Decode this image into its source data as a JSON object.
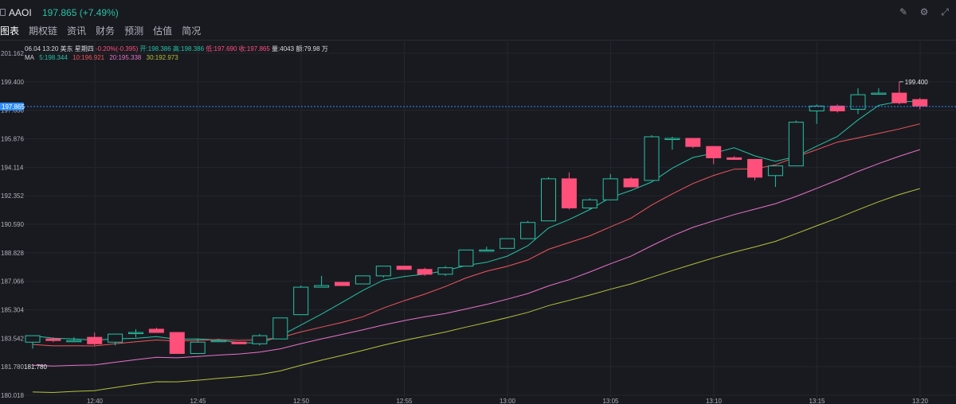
{
  "header": {
    "ticker": "AAOI",
    "price_change": "197.865 (+7.49%)",
    "icons": [
      "edit-icon",
      "settings-icon",
      "expand-icon"
    ]
  },
  "tabs": [
    "图表",
    "期权链",
    "资讯",
    "财务",
    "预测",
    "估值",
    "简况"
  ],
  "info": {
    "datetime": "06.04 13:20 美东 星期四",
    "change": "-0.20%(-0.395)",
    "open": "开:198.386",
    "high": "高:198.386",
    "low": "低:197.690",
    "close": "收:197.865",
    "volume": "量:4043",
    "amount": "额:79.98 万"
  },
  "ma": {
    "label": "MA",
    "ma5": "5:198.344",
    "ma10": "10:196.921",
    "ma20": "20:195.338",
    "ma30": "30:192.973"
  },
  "colors": {
    "up": "#26c2a4",
    "down": "#ff4f7a",
    "ma5": "#26c2a4",
    "ma10": "#f0565a",
    "ma20": "#e873c8",
    "ma30": "#b5c23a",
    "price_tag": "#2f8cff"
  },
  "chart_data": {
    "type": "candlestick",
    "y_ticks": [
      "201.162",
      "199.400",
      "197.638",
      "195.876",
      "194.114",
      "192.352",
      "190.590",
      "188.828",
      "187.066",
      "185.304",
      "183.542",
      "181.780",
      "180.018"
    ],
    "ylim": [
      180.018,
      201.162
    ],
    "x_ticks": [
      "12:40",
      "12:45",
      "12:50",
      "12:55",
      "13:00",
      "13:05",
      "13:10",
      "13:15",
      "13:20"
    ],
    "current_price_label": "197.865",
    "high_annotation": "199.400",
    "low_annotation": "181.780",
    "candles": [
      {
        "o": 183.3,
        "h": 183.7,
        "l": 182.9,
        "c": 183.7
      },
      {
        "o": 183.5,
        "h": 183.6,
        "l": 183.3,
        "c": 183.4
      },
      {
        "o": 183.4,
        "h": 183.6,
        "l": 183.3,
        "c": 183.4
      },
      {
        "o": 183.6,
        "h": 183.9,
        "l": 183.1,
        "c": 183.2
      },
      {
        "o": 183.3,
        "h": 183.8,
        "l": 183.1,
        "c": 183.8
      },
      {
        "o": 183.9,
        "h": 184.1,
        "l": 183.6,
        "c": 183.9
      },
      {
        "o": 184.1,
        "h": 184.2,
        "l": 183.9,
        "c": 183.9
      },
      {
        "o": 183.9,
        "h": 183.9,
        "l": 182.6,
        "c": 182.6
      },
      {
        "o": 182.6,
        "h": 183.5,
        "l": 182.6,
        "c": 183.3
      },
      {
        "o": 183.4,
        "h": 183.5,
        "l": 183.3,
        "c": 183.4
      },
      {
        "o": 183.3,
        "h": 183.3,
        "l": 183.2,
        "c": 183.2
      },
      {
        "o": 183.2,
        "h": 183.8,
        "l": 183.1,
        "c": 183.7
      },
      {
        "o": 183.5,
        "h": 184.8,
        "l": 183.5,
        "c": 184.8
      },
      {
        "o": 185.0,
        "h": 186.8,
        "l": 185.0,
        "c": 186.7
      },
      {
        "o": 186.7,
        "h": 187.4,
        "l": 186.7,
        "c": 186.8
      },
      {
        "o": 187.0,
        "h": 187.0,
        "l": 186.8,
        "c": 186.8
      },
      {
        "o": 186.9,
        "h": 187.4,
        "l": 186.9,
        "c": 187.4
      },
      {
        "o": 187.4,
        "h": 188.0,
        "l": 187.3,
        "c": 188.0
      },
      {
        "o": 188.0,
        "h": 188.0,
        "l": 187.8,
        "c": 187.8
      },
      {
        "o": 187.8,
        "h": 187.9,
        "l": 187.4,
        "c": 187.5
      },
      {
        "o": 187.5,
        "h": 188.0,
        "l": 187.4,
        "c": 187.9
      },
      {
        "o": 188.0,
        "h": 189.0,
        "l": 188.0,
        "c": 189.0
      },
      {
        "o": 189.0,
        "h": 189.2,
        "l": 188.9,
        "c": 189.0
      },
      {
        "o": 189.1,
        "h": 189.7,
        "l": 189.1,
        "c": 189.7
      },
      {
        "o": 189.7,
        "h": 190.8,
        "l": 189.7,
        "c": 190.7
      },
      {
        "o": 190.8,
        "h": 193.5,
        "l": 190.8,
        "c": 193.4
      },
      {
        "o": 193.4,
        "h": 193.8,
        "l": 191.5,
        "c": 191.6
      },
      {
        "o": 191.6,
        "h": 192.2,
        "l": 191.5,
        "c": 192.1
      },
      {
        "o": 192.1,
        "h": 193.7,
        "l": 192.1,
        "c": 193.4
      },
      {
        "o": 193.4,
        "h": 193.5,
        "l": 192.9,
        "c": 192.9
      },
      {
        "o": 193.3,
        "h": 196.1,
        "l": 193.3,
        "c": 196.0
      },
      {
        "o": 195.9,
        "h": 196.0,
        "l": 195.2,
        "c": 195.9
      },
      {
        "o": 195.9,
        "h": 195.9,
        "l": 195.3,
        "c": 195.4
      },
      {
        "o": 195.4,
        "h": 195.4,
        "l": 194.3,
        "c": 194.7
      },
      {
        "o": 194.7,
        "h": 194.8,
        "l": 194.6,
        "c": 194.6
      },
      {
        "o": 194.6,
        "h": 194.6,
        "l": 193.3,
        "c": 193.5
      },
      {
        "o": 193.6,
        "h": 194.2,
        "l": 192.9,
        "c": 194.2
      },
      {
        "o": 194.2,
        "h": 197.0,
        "l": 194.2,
        "c": 196.9
      },
      {
        "o": 197.6,
        "h": 198.0,
        "l": 196.8,
        "c": 197.9
      },
      {
        "o": 197.9,
        "h": 198.0,
        "l": 197.5,
        "c": 197.6
      },
      {
        "o": 197.7,
        "h": 199.0,
        "l": 197.4,
        "c": 198.6
      },
      {
        "o": 198.7,
        "h": 199.0,
        "l": 198.6,
        "c": 198.7
      },
      {
        "o": 198.7,
        "h": 199.4,
        "l": 198.0,
        "c": 198.1
      },
      {
        "o": 198.3,
        "h": 198.4,
        "l": 197.7,
        "c": 197.9
      }
    ],
    "ma_series": [
      {
        "name": "MA5",
        "values": [
          [
            182.9,
            183.3
          ],
          [
            183.4,
            183.4
          ],
          [
            183.5,
            183.5
          ],
          [
            183.8,
            183.6
          ],
          [
            183.6,
            183.8
          ],
          [
            184.9,
            186.6
          ],
          [
            188.1,
            188.7
          ],
          [
            189.7,
            192.1
          ],
          [
            192.5,
            193.1
          ],
          [
            195.1,
            195.5
          ],
          [
            194.9,
            195.1
          ],
          [
            195.5,
            196.5
          ],
          [
            197.4,
            198.2
          ],
          [
            198.3,
            198.3
          ]
        ]
      },
      {
        "name": "MA10",
        "values": []
      },
      {
        "name": "MA20",
        "values": []
      },
      {
        "name": "MA30",
        "values": []
      }
    ]
  }
}
